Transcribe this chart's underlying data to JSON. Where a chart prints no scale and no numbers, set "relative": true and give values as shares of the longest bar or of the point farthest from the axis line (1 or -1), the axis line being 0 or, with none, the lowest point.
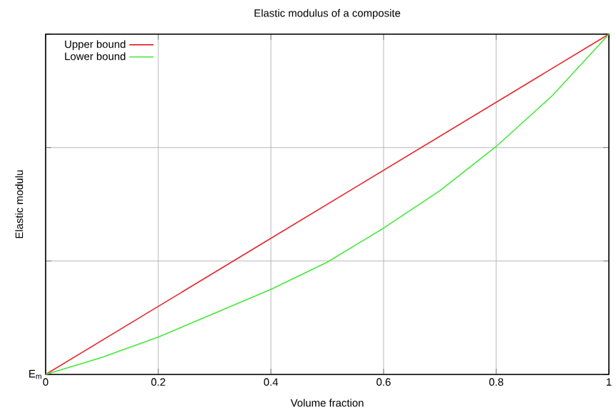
{
  "chart_data": {
    "type": "line",
    "title": "Elastic modulus of a composite",
    "xlabel": "Volume fraction",
    "ylabel": "Elastic modulu",
    "relative": true,
    "xlim": [
      0,
      1
    ],
    "xticks": [
      0,
      0.2,
      0.4,
      0.6,
      0.8,
      1
    ],
    "grid": true,
    "legend": "top left",
    "marker": "none",
    "line_style": "solid",
    "annotations": [
      {
        "text": "E$_{m}$",
        "x": 0,
        "y": 0
      }
    ],
    "series": [
      {
        "name": "Upper bound",
        "color": "#e8262b",
        "x": [
          0,
          0.2,
          0.4,
          0.6,
          0.8,
          1
        ],
        "values": [
          0,
          0.2,
          0.4,
          0.6,
          0.8,
          1
        ]
      },
      {
        "name": "Lower bound",
        "color": "#44e83a",
        "x": [
          0,
          0.1,
          0.2,
          0.3,
          0.4,
          0.5,
          0.6,
          0.7,
          0.8,
          0.9,
          1
        ],
        "values": [
          0,
          0.05,
          0.11,
          0.18,
          0.25,
          0.33,
          0.43,
          0.54,
          0.67,
          0.82,
          1
        ]
      }
    ]
  }
}
